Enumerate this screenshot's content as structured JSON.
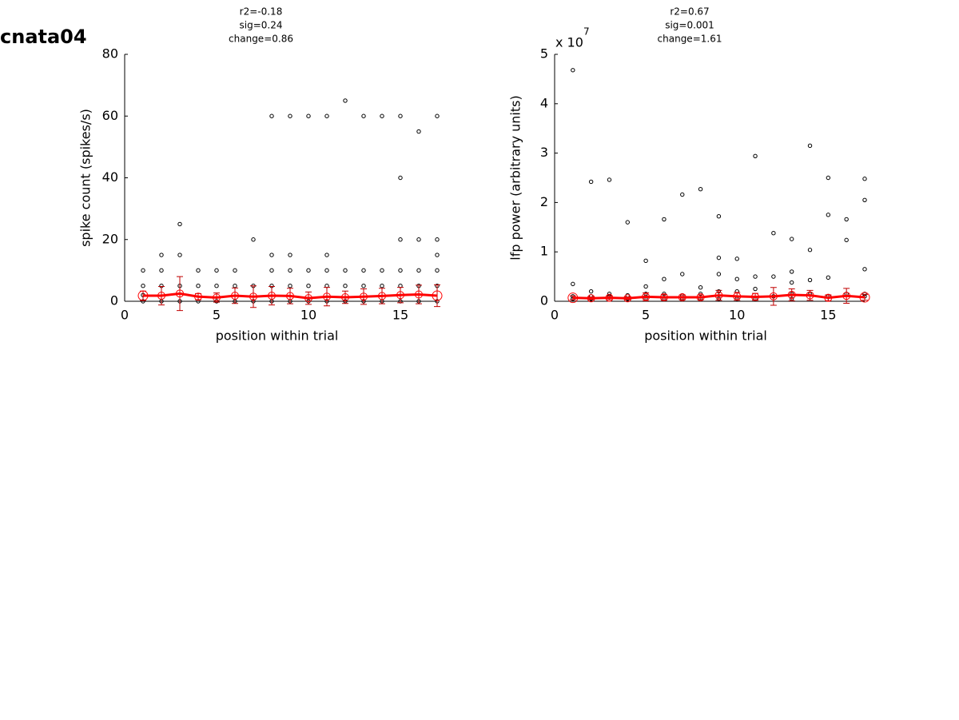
{
  "label": "cnata04",
  "chart_data": [
    {
      "type": "scatter",
      "title": [
        "r2=-0.18",
        "sig=0.24",
        "change=0.86"
      ],
      "xlabel": "position within trial",
      "ylabel": "spike count (spikes/s)",
      "xlim": [
        0,
        17
      ],
      "xticks": [
        0,
        5,
        10,
        15
      ],
      "ylim": [
        0,
        80
      ],
      "yticks": [
        0,
        20,
        40,
        60,
        80
      ],
      "series": [
        {
          "color": "#000000",
          "x": [
            1,
            1,
            1,
            1,
            2,
            2,
            2,
            2,
            3,
            3,
            3,
            3,
            4,
            4,
            4,
            5,
            5,
            5,
            6,
            6,
            6,
            7,
            7,
            7,
            8,
            8,
            8,
            8,
            8,
            9,
            9,
            9,
            9,
            9,
            10,
            10,
            10,
            10,
            11,
            11,
            11,
            11,
            11,
            12,
            12,
            12,
            12,
            13,
            13,
            13,
            13,
            14,
            14,
            14,
            14,
            15,
            15,
            15,
            15,
            15,
            15,
            16,
            16,
            16,
            16,
            16,
            17,
            17,
            17,
            17,
            17,
            17
          ],
          "values": [
            10,
            5,
            2,
            0,
            15,
            10,
            5,
            0,
            25,
            15,
            5,
            0,
            10,
            5,
            0,
            10,
            5,
            0,
            10,
            5,
            0,
            20,
            5,
            0,
            60,
            15,
            10,
            5,
            0,
            60,
            15,
            10,
            5,
            0,
            60,
            10,
            5,
            0,
            60,
            15,
            10,
            5,
            0,
            65,
            10,
            5,
            0,
            60,
            10,
            5,
            0,
            60,
            10,
            5,
            0,
            60,
            40,
            20,
            10,
            5,
            0,
            55,
            20,
            10,
            5,
            0,
            60,
            20,
            15,
            10,
            5,
            0
          ]
        },
        {
          "color": "#ff0000",
          "error_color": "#c00000",
          "x": [
            1,
            2,
            3,
            4,
            5,
            6,
            7,
            8,
            9,
            10,
            11,
            12,
            13,
            14,
            15,
            16,
            17
          ],
          "values": [
            1.8,
            1.8,
            2.5,
            1.5,
            1.2,
            1.8,
            1.5,
            1.8,
            1.7,
            1.0,
            1.5,
            1.3,
            1.5,
            1.7,
            2.0,
            2.2,
            1.8
          ],
          "errors": [
            1.5,
            3,
            5.5,
            1,
            1.5,
            2.5,
            3.5,
            3,
            2.5,
            2,
            3,
            2,
            2.5,
            2.5,
            2.5,
            3,
            3.5
          ]
        }
      ]
    },
    {
      "type": "scatter",
      "title": [
        "r2=0.67",
        "sig=0.001",
        "change=1.61"
      ],
      "xlabel": "position within trial",
      "ylabel": "lfp power (arbitrary units)",
      "y_multiplier": {
        "base": "x 10",
        "exponent": "7"
      },
      "xlim": [
        0,
        17
      ],
      "xticks": [
        0,
        5,
        10,
        15
      ],
      "ylim": [
        0,
        5
      ],
      "yticks": [
        0,
        1,
        2,
        3,
        4,
        5
      ],
      "series": [
        {
          "color": "#000000",
          "x": [
            1,
            1,
            1,
            1,
            2,
            2,
            2,
            2,
            3,
            3,
            3,
            4,
            4,
            4,
            5,
            5,
            5,
            5,
            6,
            6,
            6,
            6,
            7,
            7,
            7,
            7,
            8,
            8,
            8,
            8,
            9,
            9,
            9,
            9,
            9,
            10,
            10,
            10,
            10,
            11,
            11,
            11,
            11,
            12,
            12,
            12,
            13,
            13,
            13,
            13,
            13,
            14,
            14,
            14,
            14,
            15,
            15,
            15,
            15,
            16,
            16,
            16,
            17,
            17,
            17,
            17,
            17
          ],
          "values": [
            4.68,
            0.35,
            0.1,
            0.05,
            2.42,
            0.2,
            0.1,
            0.05,
            2.46,
            0.15,
            0.1,
            1.6,
            0.12,
            0.05,
            0.82,
            0.3,
            0.15,
            0.05,
            1.66,
            0.45,
            0.15,
            0.05,
            2.16,
            0.55,
            0.12,
            0.05,
            2.27,
            0.28,
            0.15,
            0.05,
            1.72,
            0.88,
            0.55,
            0.2,
            0.05,
            0.86,
            0.45,
            0.2,
            0.05,
            2.94,
            0.5,
            0.25,
            0.05,
            1.38,
            0.5,
            0.1,
            1.26,
            0.6,
            0.38,
            0.15,
            0.05,
            3.15,
            1.04,
            0.43,
            0.15,
            2.5,
            1.75,
            0.48,
            0.1,
            1.66,
            1.24,
            0.15,
            2.48,
            2.05,
            0.65,
            0.15,
            0.1
          ]
        },
        {
          "color": "#ff0000",
          "error_color": "#c00000",
          "x": [
            1,
            2,
            3,
            4,
            5,
            6,
            7,
            8,
            9,
            10,
            11,
            12,
            13,
            14,
            15,
            16,
            17
          ],
          "values": [
            0.07,
            0.06,
            0.07,
            0.06,
            0.09,
            0.08,
            0.08,
            0.08,
            0.12,
            0.1,
            0.09,
            0.1,
            0.13,
            0.12,
            0.07,
            0.11,
            0.08
          ],
          "errors": [
            0.04,
            0.03,
            0.04,
            0.03,
            0.08,
            0.06,
            0.05,
            0.05,
            0.1,
            0.08,
            0.07,
            0.18,
            0.12,
            0.1,
            0.06,
            0.15,
            0.06
          ]
        }
      ]
    }
  ]
}
